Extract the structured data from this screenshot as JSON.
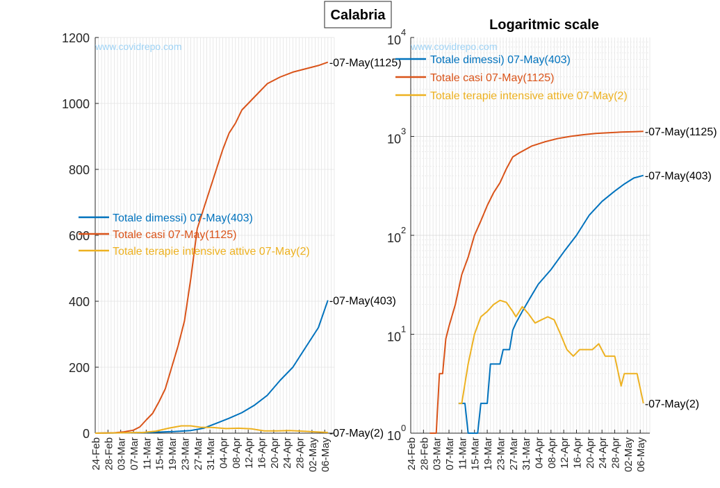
{
  "figure": {
    "suptitle": "Calabria",
    "watermark": "www.covidrepo.com"
  },
  "colors": {
    "dimessi": "#0072bd",
    "casi": "#d95319",
    "terapie": "#edb120"
  },
  "chart_data": [
    {
      "type": "line",
      "title": "",
      "xlabel": "",
      "ylabel": "",
      "ylim": [
        0,
        1200
      ],
      "yticks": [
        "0",
        "200",
        "400",
        "600",
        "800",
        "1000",
        "1200"
      ],
      "xtick_labels": [
        "24-Feb",
        "28-Feb",
        "03-Mar",
        "07-Mar",
        "11-Mar",
        "15-Mar",
        "19-Mar",
        "23-Mar",
        "27-Mar",
        "31-Mar",
        "04-Apr",
        "08-Apr",
        "12-Apr",
        "16-Apr",
        "20-Apr",
        "24-Apr",
        "28-Apr",
        "02-May",
        "06-May"
      ],
      "grid": true,
      "legend_position": "middle-left",
      "series": [
        {
          "name": "Totale dimessi) 07-May(403)",
          "color_key": "dimessi",
          "end_label": "-07-May(403)",
          "x": [
            "2020-02-24",
            "2020-03-12",
            "2020-03-20",
            "2020-03-25",
            "2020-03-29",
            "2020-04-02",
            "2020-04-06",
            "2020-04-10",
            "2020-04-14",
            "2020-04-18",
            "2020-04-22",
            "2020-04-26",
            "2020-04-30",
            "2020-05-04",
            "2020-05-07"
          ],
          "y": [
            0,
            2,
            5,
            8,
            15,
            30,
            45,
            62,
            85,
            115,
            160,
            200,
            260,
            320,
            403
          ]
        },
        {
          "name": "Totale casi 07-May(1125)",
          "color_key": "casi",
          "end_label": "-07-May(1125)",
          "x": [
            "2020-02-24",
            "2020-03-01",
            "2020-03-04",
            "2020-03-07",
            "2020-03-09",
            "2020-03-11",
            "2020-03-13",
            "2020-03-15",
            "2020-03-17",
            "2020-03-19",
            "2020-03-21",
            "2020-03-23",
            "2020-03-25",
            "2020-03-27",
            "2020-03-29",
            "2020-03-31",
            "2020-04-02",
            "2020-04-04",
            "2020-04-06",
            "2020-04-08",
            "2020-04-10",
            "2020-04-12",
            "2020-04-14",
            "2020-04-16",
            "2020-04-18",
            "2020-04-22",
            "2020-04-26",
            "2020-04-30",
            "2020-05-04",
            "2020-05-07"
          ],
          "y": [
            0,
            1,
            4,
            9,
            19,
            40,
            60,
            95,
            135,
            200,
            265,
            340,
            470,
            620,
            680,
            740,
            800,
            860,
            910,
            940,
            980,
            1000,
            1020,
            1040,
            1060,
            1080,
            1095,
            1105,
            1115,
            1125
          ]
        },
        {
          "name": "Totale terapie intensive attive 07-May(2)",
          "color_key": "terapie",
          "end_label": "-07-May(2)",
          "x": [
            "2020-02-24",
            "2020-03-10",
            "2020-03-14",
            "2020-03-18",
            "2020-03-22",
            "2020-03-25",
            "2020-03-28",
            "2020-04-01",
            "2020-04-05",
            "2020-04-09",
            "2020-04-13",
            "2020-04-17",
            "2020-04-21",
            "2020-04-25",
            "2020-04-29",
            "2020-05-03",
            "2020-05-07"
          ],
          "y": [
            0,
            2,
            6,
            15,
            22,
            22,
            18,
            17,
            14,
            15,
            13,
            7,
            7,
            8,
            6,
            4,
            2
          ]
        }
      ]
    },
    {
      "type": "line",
      "title": "Logaritmic scale",
      "xlabel": "",
      "ylabel": "",
      "yscale": "log",
      "ylim": [
        1,
        10000
      ],
      "ytick_bases": [
        "10",
        "10",
        "10",
        "10",
        "10"
      ],
      "ytick_exponents": [
        "0",
        "1",
        "2",
        "3",
        "4"
      ],
      "xtick_labels": [
        "24-Feb",
        "28-Feb",
        "03-Mar",
        "07-Mar",
        "11-Mar",
        "15-Mar",
        "19-Mar",
        "23-Mar",
        "27-Mar",
        "31-Mar",
        "04-Apr",
        "08-Apr",
        "12-Apr",
        "16-Apr",
        "20-Apr",
        "24-Apr",
        "28-Apr",
        "02-May",
        "06-May"
      ],
      "grid": true,
      "legend_position": "top-left",
      "series": [
        {
          "name": "Totale dimessi) 07-May(403)",
          "color_key": "dimessi",
          "end_label": "-07-May(403)",
          "x": [
            "2020-03-10",
            "2020-03-11",
            "2020-03-12",
            "2020-03-13",
            "2020-03-16",
            "2020-03-17",
            "2020-03-19",
            "2020-03-20",
            "2020-03-23",
            "2020-03-24",
            "2020-03-26",
            "2020-03-27",
            "2020-03-28",
            "2020-03-30",
            "2020-04-01",
            "2020-04-04",
            "2020-04-08",
            "2020-04-12",
            "2020-04-16",
            "2020-04-20",
            "2020-04-24",
            "2020-04-28",
            "2020-05-01",
            "2020-05-04",
            "2020-05-07"
          ],
          "y": [
            2,
            2,
            2,
            1,
            1,
            2,
            2,
            5,
            5,
            7,
            7,
            11,
            13,
            17,
            22,
            32,
            45,
            68,
            100,
            160,
            220,
            280,
            330,
            380,
            403
          ]
        },
        {
          "name": "Totale casi 07-May(1125)",
          "color_key": "casi",
          "end_label": "-07-May(1125)",
          "x": [
            "2020-03-01",
            "2020-03-03",
            "2020-03-04",
            "2020-03-05",
            "2020-03-06",
            "2020-03-07",
            "2020-03-09",
            "2020-03-11",
            "2020-03-13",
            "2020-03-15",
            "2020-03-17",
            "2020-03-19",
            "2020-03-21",
            "2020-03-23",
            "2020-03-25",
            "2020-03-27",
            "2020-03-29",
            "2020-04-02",
            "2020-04-06",
            "2020-04-10",
            "2020-04-14",
            "2020-04-18",
            "2020-04-22",
            "2020-04-26",
            "2020-04-30",
            "2020-05-04",
            "2020-05-07"
          ],
          "y": [
            1,
            1,
            4,
            4,
            9,
            12,
            20,
            40,
            60,
            100,
            140,
            200,
            270,
            340,
            470,
            620,
            680,
            800,
            880,
            950,
            1000,
            1040,
            1070,
            1090,
            1105,
            1115,
            1125
          ]
        },
        {
          "name": "Totale terapie intensive attive 07-May(2)",
          "color_key": "terapie",
          "end_label": "-07-May(2)",
          "x": [
            "2020-03-10",
            "2020-03-11",
            "2020-03-13",
            "2020-03-15",
            "2020-03-17",
            "2020-03-19",
            "2020-03-21",
            "2020-03-23",
            "2020-03-25",
            "2020-03-27",
            "2020-03-28",
            "2020-03-30",
            "2020-04-01",
            "2020-04-03",
            "2020-04-05",
            "2020-04-07",
            "2020-04-09",
            "2020-04-11",
            "2020-04-13",
            "2020-04-15",
            "2020-04-17",
            "2020-04-19",
            "2020-04-21",
            "2020-04-23",
            "2020-04-25",
            "2020-04-26",
            "2020-04-28",
            "2020-04-30",
            "2020-05-01",
            "2020-05-03",
            "2020-05-05",
            "2020-05-07"
          ],
          "y": [
            2,
            2,
            5,
            10,
            15,
            17,
            20,
            22,
            21,
            17,
            15,
            19,
            16,
            13,
            14,
            15,
            14,
            10,
            7,
            6,
            7,
            7,
            7,
            8,
            6,
            6,
            6,
            3,
            4,
            4,
            4,
            2
          ]
        }
      ]
    }
  ]
}
